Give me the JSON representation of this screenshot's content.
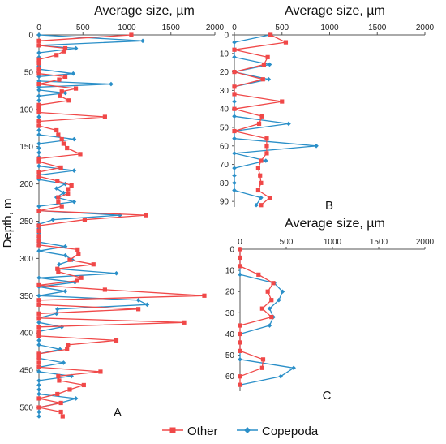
{
  "figure": {
    "y_axis_label": "Depth, m",
    "legend": [
      {
        "name": "Other",
        "color": "#f04848",
        "marker": "square"
      },
      {
        "name": "Copepoda",
        "color": "#2a8fc8",
        "marker": "diamond"
      }
    ]
  },
  "chart_data": [
    {
      "type": "line",
      "panel_label": "A",
      "title": "Average size, µm",
      "xlabel": "Average size, µm",
      "ylabel": "Depth, m",
      "xlim": [
        0,
        2000
      ],
      "ylim": [
        0,
        512
      ],
      "x_axis_position": "top",
      "y_inverted": true,
      "x_ticks": [
        0,
        500,
        1000,
        1500,
        2000
      ],
      "y_ticks": [
        0,
        50,
        100,
        150,
        200,
        250,
        300,
        350,
        400,
        450,
        500
      ],
      "grid": false,
      "series": [
        {
          "name": "Other",
          "color": "#f04848",
          "marker": "square",
          "points": [
            [
              1050,
              0
            ],
            [
              0,
              8
            ],
            [
              0,
              14
            ],
            [
              300,
              18
            ],
            [
              280,
              22
            ],
            [
              200,
              27
            ],
            [
              0,
              33
            ],
            [
              0,
              38
            ],
            [
              0,
              46
            ],
            [
              0,
              52
            ],
            [
              300,
              56
            ],
            [
              230,
              60
            ],
            [
              0,
              66
            ],
            [
              420,
              72
            ],
            [
              260,
              76
            ],
            [
              240,
              82
            ],
            [
              340,
              88
            ],
            [
              0,
              94
            ],
            [
              0,
              98
            ],
            [
              0,
              104
            ],
            [
              750,
              110
            ],
            [
              0,
              116
            ],
            [
              0,
              122
            ],
            [
              200,
              128
            ],
            [
              220,
              134
            ],
            [
              260,
              140
            ],
            [
              280,
              146
            ],
            [
              320,
              152
            ],
            [
              470,
              160
            ],
            [
              0,
              166
            ],
            [
              0,
              170
            ],
            [
              250,
              178
            ],
            [
              0,
              184
            ],
            [
              0,
              190
            ],
            [
              210,
              196
            ],
            [
              370,
              202
            ],
            [
              330,
              207
            ],
            [
              330,
              213
            ],
            [
              220,
              218
            ],
            [
              220,
              224
            ],
            [
              260,
              230
            ],
            [
              0,
              236
            ],
            [
              1220,
              242
            ],
            [
              520,
              248
            ],
            [
              0,
              256
            ],
            [
              0,
              263
            ],
            [
              0,
              270
            ],
            [
              0,
              276
            ],
            [
              0,
              282
            ],
            [
              440,
              288
            ],
            [
              450,
              294
            ],
            [
              350,
              302
            ],
            [
              620,
              308
            ],
            [
              210,
              314
            ],
            [
              220,
              318
            ],
            [
              480,
              326
            ],
            [
              430,
              330
            ],
            [
              0,
              336
            ],
            [
              750,
              342
            ],
            [
              1880,
              350
            ],
            [
              0,
              356
            ],
            [
              0,
              362
            ],
            [
              1130,
              368
            ],
            [
              0,
              374
            ],
            [
              0,
              380
            ],
            [
              1650,
              386
            ],
            [
              0,
              392
            ],
            [
              0,
              398
            ],
            [
              0,
              404
            ],
            [
              880,
              410
            ],
            [
              330,
              416
            ],
            [
              320,
              422
            ],
            [
              0,
              428
            ],
            [
              0,
              434
            ],
            [
              0,
              440
            ],
            [
              0,
              446
            ],
            [
              700,
              452
            ],
            [
              220,
              458
            ],
            [
              230,
              464
            ],
            [
              510,
              470
            ],
            [
              350,
              476
            ],
            [
              210,
              482
            ],
            [
              0,
              488
            ],
            [
              250,
              494
            ],
            [
              0,
              500
            ],
            [
              250,
              506
            ],
            [
              270,
              512
            ]
          ]
        },
        {
          "name": "Copepoda",
          "color": "#2a8fc8",
          "marker": "diamond",
          "points": [
            [
              0,
              0
            ],
            [
              1180,
              8
            ],
            [
              0,
              14
            ],
            [
              420,
              18
            ],
            [
              0,
              24
            ],
            [
              0,
              30
            ],
            [
              0,
              36
            ],
            [
              0,
              42
            ],
            [
              0,
              46
            ],
            [
              390,
              52
            ],
            [
              0,
              56
            ],
            [
              0,
              62
            ],
            [
              820,
              66
            ],
            [
              0,
              70
            ],
            [
              0,
              74
            ],
            [
              300,
              78
            ],
            [
              0,
              82
            ],
            [
              0,
              88
            ],
            [
              0,
              94
            ],
            [
              0,
              98
            ],
            [
              0,
              104
            ],
            [
              0,
              110
            ],
            [
              0,
              116
            ],
            [
              0,
              122
            ],
            [
              0,
              128
            ],
            [
              0,
              134
            ],
            [
              400,
              140
            ],
            [
              0,
              146
            ],
            [
              0,
              152
            ],
            [
              0,
              158
            ],
            [
              0,
              164
            ],
            [
              0,
              170
            ],
            [
              0,
              176
            ],
            [
              400,
              182
            ],
            [
              0,
              188
            ],
            [
              0,
              194
            ],
            [
              300,
              200
            ],
            [
              200,
              206
            ],
            [
              280,
              212
            ],
            [
              200,
              218
            ],
            [
              400,
              224
            ],
            [
              0,
              230
            ],
            [
              0,
              236
            ],
            [
              920,
              242
            ],
            [
              160,
              248
            ],
            [
              0,
              254
            ],
            [
              0,
              260
            ],
            [
              0,
              266
            ],
            [
              0,
              272
            ],
            [
              0,
              278
            ],
            [
              300,
              284
            ],
            [
              0,
              290
            ],
            [
              300,
              296
            ],
            [
              380,
              302
            ],
            [
              230,
              308
            ],
            [
              210,
              314
            ],
            [
              880,
              320
            ],
            [
              0,
              326
            ],
            [
              410,
              332
            ],
            [
              0,
              338
            ],
            [
              300,
              344
            ],
            [
              0,
              350
            ],
            [
              1130,
              356
            ],
            [
              1230,
              362
            ],
            [
              210,
              368
            ],
            [
              200,
              374
            ],
            [
              0,
              380
            ],
            [
              0,
              386
            ],
            [
              260,
              392
            ],
            [
              0,
              398
            ],
            [
              0,
              404
            ],
            [
              0,
              410
            ],
            [
              0,
              416
            ],
            [
              240,
              422
            ],
            [
              0,
              428
            ],
            [
              0,
              434
            ],
            [
              280,
              440
            ],
            [
              0,
              446
            ],
            [
              0,
              452
            ],
            [
              370,
              458
            ],
            [
              0,
              464
            ],
            [
              0,
              470
            ],
            [
              0,
              476
            ],
            [
              0,
              482
            ],
            [
              420,
              488
            ],
            [
              240,
              494
            ],
            [
              0,
              500
            ],
            [
              0,
              506
            ],
            [
              0,
              512
            ]
          ]
        }
      ]
    },
    {
      "type": "line",
      "panel_label": "B",
      "title": "Average size, µm",
      "xlabel": "Average size, µm",
      "ylabel": "",
      "xlim": [
        0,
        2000
      ],
      "ylim": [
        0,
        93
      ],
      "x_axis_position": "top",
      "y_inverted": true,
      "x_ticks": [
        0,
        500,
        1000,
        1500,
        2000
      ],
      "y_ticks": [
        0,
        10,
        20,
        30,
        40,
        50,
        60,
        70,
        80,
        90
      ],
      "grid": false,
      "series": [
        {
          "name": "Other",
          "color": "#f04848",
          "marker": "square",
          "points": [
            [
              380,
              0
            ],
            [
              540,
              4
            ],
            [
              0,
              8
            ],
            [
              350,
              12
            ],
            [
              310,
              16
            ],
            [
              0,
              20
            ],
            [
              300,
              24
            ],
            [
              0,
              28
            ],
            [
              0,
              32
            ],
            [
              500,
              36
            ],
            [
              0,
              40
            ],
            [
              290,
              44
            ],
            [
              260,
              48
            ],
            [
              0,
              52
            ],
            [
              340,
              56
            ],
            [
              340,
              60
            ],
            [
              340,
              64
            ],
            [
              280,
              68
            ],
            [
              250,
              72
            ],
            [
              270,
              76
            ],
            [
              280,
              80
            ],
            [
              250,
              84
            ],
            [
              370,
              88
            ],
            [
              280,
              92
            ]
          ]
        },
        {
          "name": "Copepoda",
          "color": "#2a8fc8",
          "marker": "diamond",
          "points": [
            [
              370,
              0
            ],
            [
              0,
              4
            ],
            [
              0,
              8
            ],
            [
              0,
              12
            ],
            [
              370,
              16
            ],
            [
              0,
              20
            ],
            [
              360,
              24
            ],
            [
              0,
              28
            ],
            [
              0,
              32
            ],
            [
              0,
              36
            ],
            [
              0,
              40
            ],
            [
              0,
              44
            ],
            [
              570,
              48
            ],
            [
              0,
              52
            ],
            [
              0,
              56
            ],
            [
              860,
              60
            ],
            [
              0,
              64
            ],
            [
              330,
              68
            ],
            [
              0,
              72
            ],
            [
              0,
              76
            ],
            [
              0,
              80
            ],
            [
              0,
              84
            ],
            [
              280,
              88
            ],
            [
              230,
              92
            ]
          ]
        }
      ]
    },
    {
      "type": "line",
      "panel_label": "C",
      "title": "Average size, µm",
      "xlabel": "Average size, µm",
      "ylabel": "",
      "xlim": [
        0,
        2000
      ],
      "ylim": [
        0,
        67
      ],
      "x_axis_position": "top",
      "y_inverted": true,
      "x_ticks": [
        0,
        500,
        1000,
        1500,
        2000
      ],
      "y_ticks": [
        0,
        10,
        20,
        30,
        40,
        50,
        60
      ],
      "grid": false,
      "series": [
        {
          "name": "Other",
          "color": "#f04848",
          "marker": "square",
          "points": [
            [
              0,
              0
            ],
            [
              0,
              4
            ],
            [
              0,
              8
            ],
            [
              200,
              12
            ],
            [
              360,
              16
            ],
            [
              300,
              20
            ],
            [
              340,
              24
            ],
            [
              240,
              28
            ],
            [
              340,
              32
            ],
            [
              0,
              36
            ],
            [
              0,
              40
            ],
            [
              0,
              44
            ],
            [
              0,
              48
            ],
            [
              250,
              52
            ],
            [
              240,
              56
            ],
            [
              0,
              60
            ],
            [
              0,
              64
            ]
          ]
        },
        {
          "name": "Copepoda",
          "color": "#2a8fc8",
          "marker": "diamond",
          "points": [
            [
              0,
              0
            ],
            [
              0,
              4
            ],
            [
              0,
              8
            ],
            [
              0,
              12
            ],
            [
              370,
              16
            ],
            [
              460,
              20
            ],
            [
              420,
              24
            ],
            [
              320,
              28
            ],
            [
              360,
              32
            ],
            [
              320,
              36
            ],
            [
              0,
              40
            ],
            [
              0,
              44
            ],
            [
              0,
              48
            ],
            [
              0,
              52
            ],
            [
              580,
              56
            ],
            [
              440,
              60
            ],
            [
              0,
              64
            ]
          ]
        }
      ]
    }
  ]
}
